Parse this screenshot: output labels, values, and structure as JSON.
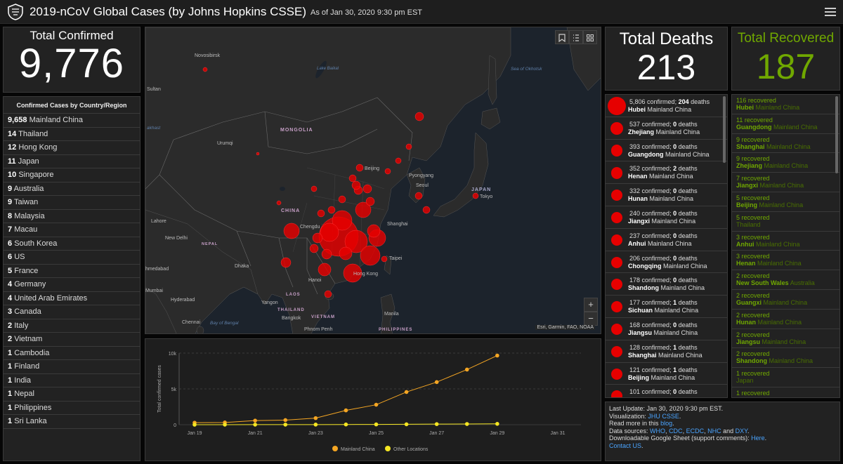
{
  "header": {
    "title": "2019-nCoV Global Cases (by Johns Hopkins CSSE)",
    "as_of": "As of Jan 30, 2020 9:30 pm EST"
  },
  "total_confirmed": {
    "label": "Total Confirmed",
    "value": "9,776"
  },
  "country_list": {
    "header": "Confirmed Cases by Country/Region",
    "rows": [
      {
        "count": "9,658",
        "name": "Mainland China"
      },
      {
        "count": "14",
        "name": "Thailand"
      },
      {
        "count": "12",
        "name": "Hong Kong"
      },
      {
        "count": "11",
        "name": "Japan"
      },
      {
        "count": "10",
        "name": "Singapore"
      },
      {
        "count": "9",
        "name": "Australia"
      },
      {
        "count": "9",
        "name": "Taiwan"
      },
      {
        "count": "8",
        "name": "Malaysia"
      },
      {
        "count": "7",
        "name": "Macau"
      },
      {
        "count": "6",
        "name": "South Korea"
      },
      {
        "count": "6",
        "name": "US"
      },
      {
        "count": "5",
        "name": "France"
      },
      {
        "count": "4",
        "name": "Germany"
      },
      {
        "count": "4",
        "name": "United Arab Emirates"
      },
      {
        "count": "3",
        "name": "Canada"
      },
      {
        "count": "2",
        "name": "Italy"
      },
      {
        "count": "2",
        "name": "Vietnam"
      },
      {
        "count": "1",
        "name": "Cambodia"
      },
      {
        "count": "1",
        "name": "Finland"
      },
      {
        "count": "1",
        "name": "India"
      },
      {
        "count": "1",
        "name": "Nepal"
      },
      {
        "count": "1",
        "name": "Philippines"
      },
      {
        "count": "1",
        "name": "Sri Lanka"
      }
    ]
  },
  "map": {
    "labels": {
      "novosibirsk": "Novosibirsk",
      "lake_baikal": "Lake Baikal",
      "sea_okhotsk": "Sea of Okhotsk",
      "sultan": "Sultan",
      "akhast": "akhast",
      "mongolia": "MONGOLIA",
      "urumqi": "Urumqi",
      "beijing": "Beijing",
      "pyongyang": "Pyongyang",
      "seoul": "Seoul",
      "japan": "JAPAN",
      "tokyo": "Tokyo",
      "china": "CHINA",
      "lahore": "Lahore",
      "chengdu": "Chengdu",
      "shanghai": "Shanghai",
      "new_delhi": "New Delhi",
      "nepal": "NEPAL",
      "taipei": "Taipei",
      "ahmedabad": "hmedabad",
      "dhaka": "Dhaka",
      "hong_kong": "Hong Kong",
      "mumbai": "Mumbai",
      "hanoi": "Hanoi",
      "laos": "LAOS",
      "hyderabad": "Hyderabad",
      "yangon": "Yangon",
      "thailand": "THAILAND",
      "manila": "Manila",
      "chennai": "Chennai",
      "bay_bengal": "Bay of Bengal",
      "bangkok": "Bangkok",
      "vietnam": "VIETNAM",
      "phnom_penh": "Phnom Penh",
      "philippines": "PHILIPPINES"
    },
    "attribution": "Esri, Garmin, FAO, NOAA",
    "zoom_in": "+",
    "zoom_out": "−",
    "accent_color": "#e60000"
  },
  "chart_data": {
    "type": "line",
    "ylabel": "Total confirmed cases",
    "yticks": [
      "0",
      "5k",
      "10k"
    ],
    "ylim": [
      0,
      10000
    ],
    "xticks": [
      "Jan 19",
      "Jan 21",
      "Jan 23",
      "Jan 25",
      "Jan 27",
      "Jan 29",
      "Jan 31"
    ],
    "x": [
      "Jan 19",
      "Jan 20",
      "Jan 21",
      "Jan 22",
      "Jan 23",
      "Jan 24",
      "Jan 25",
      "Jan 26",
      "Jan 27",
      "Jan 28",
      "Jan 29"
    ],
    "series": [
      {
        "name": "Mainland China",
        "color": "#f5a623",
        "values": [
          278,
          309,
          571,
          643,
          918,
          1999,
          2787,
          4563,
          5949,
          7700,
          9658
        ]
      },
      {
        "name": "Other Locations",
        "color": "#f5e623",
        "values": [
          4,
          6,
          8,
          11,
          16,
          29,
          39,
          56,
          80,
          94,
          118
        ]
      }
    ]
  },
  "deaths": {
    "label": "Total Deaths",
    "value": "213"
  },
  "recovered": {
    "label": "Total Recovered",
    "value": "187"
  },
  "deaths_list": [
    {
      "confirmed": "5,806",
      "deaths": "204",
      "province": "Hubei",
      "region": "Mainland China"
    },
    {
      "confirmed": "537",
      "deaths": "0",
      "province": "Zhejiang",
      "region": "Mainland China"
    },
    {
      "confirmed": "393",
      "deaths": "0",
      "province": "Guangdong",
      "region": "Mainland China"
    },
    {
      "confirmed": "352",
      "deaths": "2",
      "province": "Henan",
      "region": "Mainland China"
    },
    {
      "confirmed": "332",
      "deaths": "0",
      "province": "Hunan",
      "region": "Mainland China"
    },
    {
      "confirmed": "240",
      "deaths": "0",
      "province": "Jiangxi",
      "region": "Mainland China"
    },
    {
      "confirmed": "237",
      "deaths": "0",
      "province": "Anhui",
      "region": "Mainland China"
    },
    {
      "confirmed": "206",
      "deaths": "0",
      "province": "Chongqing",
      "region": "Mainland China"
    },
    {
      "confirmed": "178",
      "deaths": "0",
      "province": "Shandong",
      "region": "Mainland China"
    },
    {
      "confirmed": "177",
      "deaths": "1",
      "province": "Sichuan",
      "region": "Mainland China"
    },
    {
      "confirmed": "168",
      "deaths": "0",
      "province": "Jiangsu",
      "region": "Mainland China"
    },
    {
      "confirmed": "128",
      "deaths": "1",
      "province": "Shanghai",
      "region": "Mainland China"
    },
    {
      "confirmed": "121",
      "deaths": "1",
      "province": "Beijing",
      "region": "Mainland China"
    },
    {
      "confirmed": "101",
      "deaths": "0",
      "province": "",
      "region": ""
    }
  ],
  "recovered_list": [
    {
      "count": "116",
      "province": "Hubei",
      "region": "Mainland China"
    },
    {
      "count": "11",
      "province": "Guangdong",
      "region": "Mainland China"
    },
    {
      "count": "9",
      "province": "Shanghai",
      "region": "Mainland China"
    },
    {
      "count": "9",
      "province": "Zhejiang",
      "region": "Mainland China"
    },
    {
      "count": "7",
      "province": "Jiangxi",
      "region": "Mainland China"
    },
    {
      "count": "5",
      "province": "Beijing",
      "region": "Mainland China"
    },
    {
      "count": "5",
      "province": "",
      "region": "Thailand"
    },
    {
      "count": "3",
      "province": "Anhui",
      "region": "Mainland China"
    },
    {
      "count": "3",
      "province": "Henan",
      "region": "Mainland China"
    },
    {
      "count": "2",
      "province": "New South Wales",
      "region": "Australia"
    },
    {
      "count": "2",
      "province": "Guangxi",
      "region": "Mainland China"
    },
    {
      "count": "2",
      "province": "Hunan",
      "region": "Mainland China"
    },
    {
      "count": "2",
      "province": "Jiangsu",
      "region": "Mainland China"
    },
    {
      "count": "2",
      "province": "Shandong",
      "region": "Mainland China"
    },
    {
      "count": "1",
      "province": "",
      "region": "Japan"
    },
    {
      "count": "1",
      "province": "",
      "region": ""
    }
  ],
  "info": {
    "last_update": "Last Update: Jan 30, 2020 9:30 pm EST.",
    "vis_label": "Visualization:",
    "vis_link": "JHU CSSE",
    "read_more": "Read more in this",
    "blog": "blog",
    "sources_label": "Data sources:",
    "src_who": "WHO",
    "src_cdc": "CDC",
    "src_ecdc": "ECDC",
    "src_nhc": "NHC",
    "and": "and",
    "src_dxy": "DXY",
    "sheet": "Downloadable Google Sheet (support comments):",
    "here": "Here",
    "contact": "Contact US"
  },
  "common": {
    "confirmed_word": "confirmed;",
    "deaths_word": "deaths",
    "recovered_word": "recovered"
  }
}
